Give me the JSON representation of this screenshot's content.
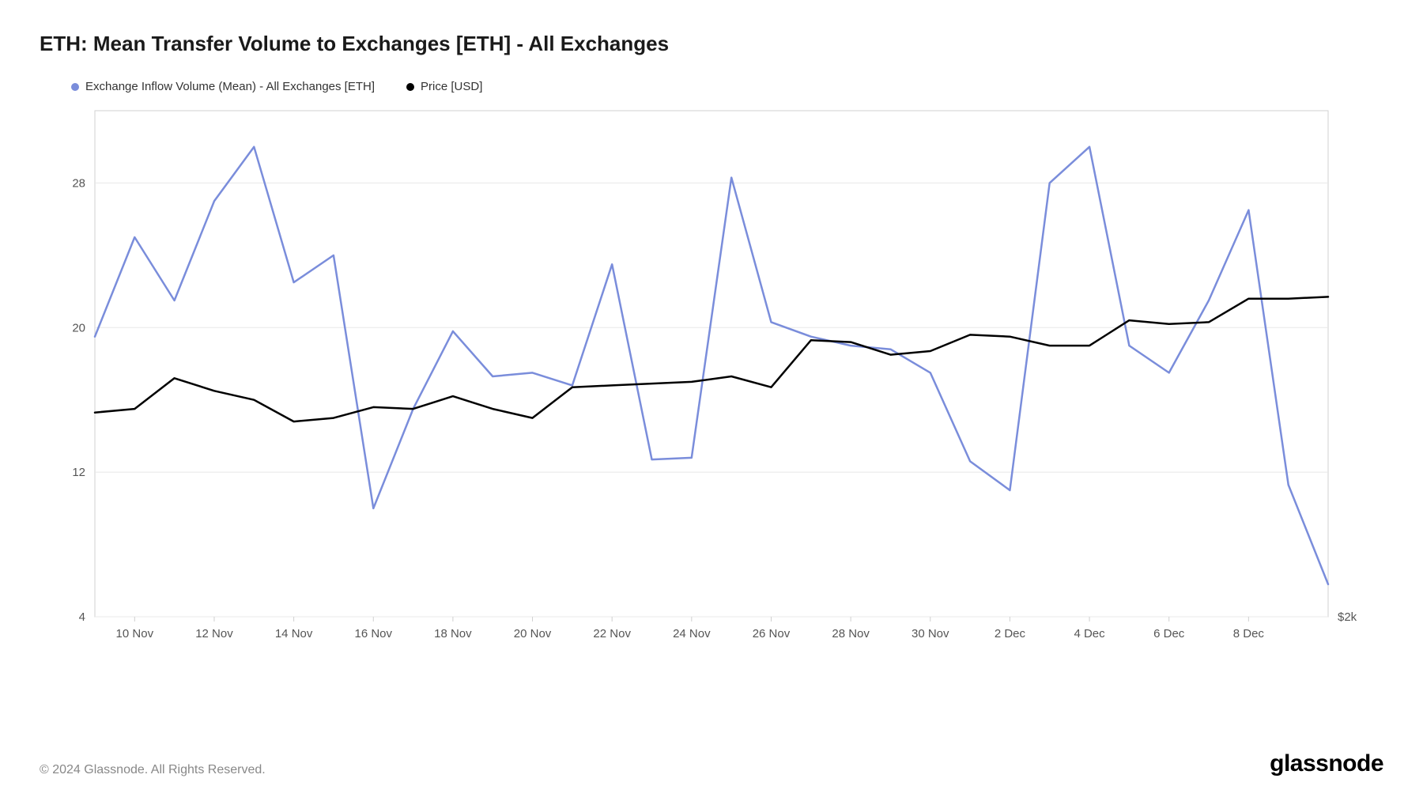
{
  "title": "ETH: Mean Transfer Volume to Exchanges [ETH] - All Exchanges",
  "legend": {
    "series1": {
      "label": "Exchange Inflow Volume (Mean) - All Exchanges [ETH]",
      "color": "#7a8ddb"
    },
    "series2": {
      "label": "Price [USD]",
      "color": "#000000"
    }
  },
  "chart": {
    "type": "line",
    "background_color": "#ffffff",
    "grid_color": "#e8e8e8",
    "axis_color": "#d0d0d0",
    "tick_fontsize": 15,
    "tick_color": "#555555",
    "y_left": {
      "min": 4,
      "max": 32,
      "ticks": [
        4,
        12,
        20,
        28
      ]
    },
    "y_right": {
      "label": "$2k",
      "align_to_left_value": 4
    },
    "x_labels": [
      "10 Nov",
      "12 Nov",
      "14 Nov",
      "16 Nov",
      "18 Nov",
      "20 Nov",
      "22 Nov",
      "24 Nov",
      "26 Nov",
      "28 Nov",
      "30 Nov",
      "2 Dec",
      "4 Dec",
      "6 Dec",
      "8 Dec"
    ],
    "x_label_indices": [
      1,
      3,
      5,
      7,
      9,
      11,
      13,
      15,
      17,
      19,
      21,
      23,
      25,
      27,
      29
    ],
    "series_inflow": {
      "color": "#7a8ddb",
      "line_width": 2.5,
      "values": [
        19.5,
        25.0,
        21.5,
        27.0,
        30.0,
        22.5,
        24.0,
        10.0,
        15.5,
        19.8,
        17.3,
        17.5,
        16.8,
        23.5,
        12.7,
        12.8,
        28.3,
        20.3,
        19.5,
        19.0,
        18.8,
        17.5,
        12.6,
        11.0,
        28.0,
        30.0,
        19.0,
        17.5,
        21.5,
        26.5,
        11.3,
        5.8
      ]
    },
    "series_price": {
      "color": "#000000",
      "line_width": 2.5,
      "values": [
        15.3,
        15.5,
        17.2,
        16.5,
        16.0,
        14.8,
        15.0,
        15.6,
        15.5,
        16.2,
        15.5,
        15.0,
        16.7,
        16.8,
        16.9,
        17.0,
        17.3,
        16.7,
        19.3,
        19.2,
        18.5,
        18.7,
        19.6,
        19.5,
        19.0,
        19.0,
        20.4,
        20.2,
        20.3,
        21.6,
        21.6,
        21.7
      ]
    }
  },
  "footer": {
    "copyright": "© 2024 Glassnode. All Rights Reserved.",
    "brand": "glassnode"
  }
}
